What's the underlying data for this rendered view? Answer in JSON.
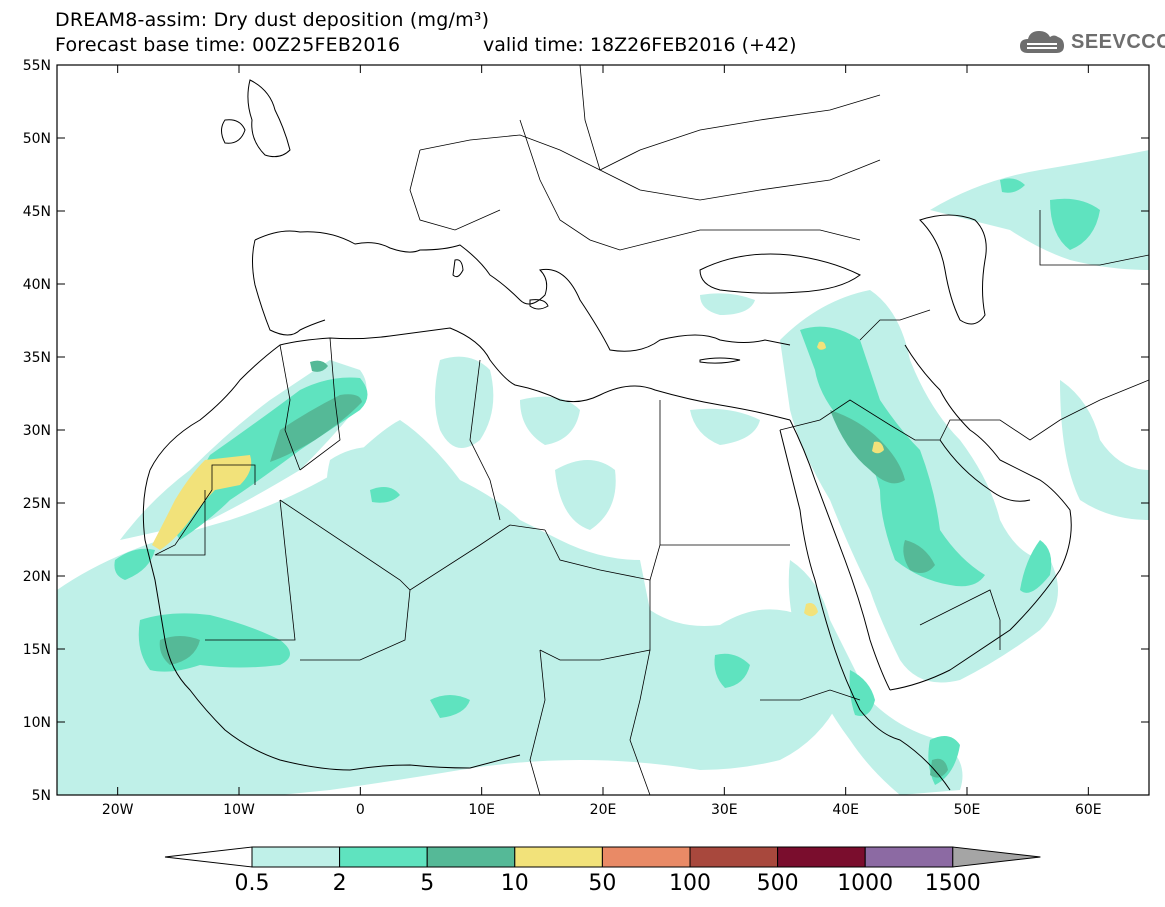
{
  "title": {
    "line1": "DREAM8-assim: Dry dust deposition (mg/m³)",
    "line2_base": "Forecast base time: 00Z25FEB2016",
    "line2_valid": "valid time: 18Z26FEB2016 (+42)"
  },
  "logo": {
    "text": "SEEVCCC",
    "icon": "cloud-logo-icon"
  },
  "axes": {
    "lat_labels": [
      "55N",
      "50N",
      "45N",
      "40N",
      "35N",
      "30N",
      "25N",
      "20N",
      "15N",
      "10N",
      "5N"
    ],
    "lon_labels": [
      "20W",
      "10W",
      "0",
      "10E",
      "20E",
      "30E",
      "40E",
      "50E",
      "60E"
    ],
    "lat_range": [
      5,
      55
    ],
    "lon_range": [
      -25,
      65
    ]
  },
  "colorbar": {
    "labels": [
      "0.5",
      "2",
      "5",
      "10",
      "50",
      "100",
      "500",
      "1000",
      "1500"
    ],
    "colors": [
      "#bff0e8",
      "#5fe3bf",
      "#55b997",
      "#f2e27a",
      "#e98a66",
      "#a8483d",
      "#7a0d2d",
      "#8c6aa3",
      "#a5a5a5"
    ],
    "under_color": "#ffffff"
  },
  "colors": {
    "level1": "#bff0e8",
    "level2": "#5fe3bf",
    "level3": "#55b997",
    "level4": "#f2e27a"
  }
}
